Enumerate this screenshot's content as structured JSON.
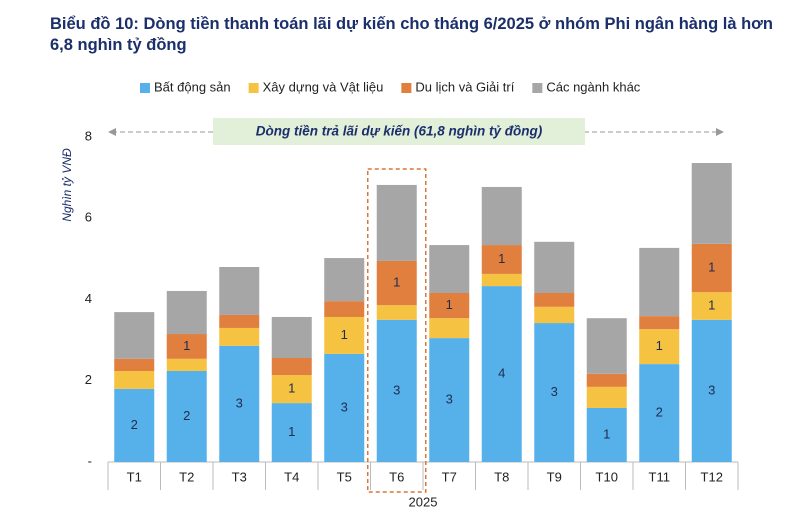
{
  "chart_data": {
    "type": "stacked_bar",
    "title": "Biểu đồ 10: Dòng tiền thanh toán lãi dự kiến cho tháng 6/2025 ở nhóm Phi ngân hàng là hơn 6,8 nghìn tỷ đồng",
    "annotation": "Dòng tiền trả lãi dự kiến (61,8 nghìn tỷ đồng)",
    "y_label": "Nghìn tỷ VNĐ",
    "x_label": "2025",
    "categories": [
      "T1",
      "T2",
      "T3",
      "T4",
      "T5",
      "T6",
      "T7",
      "T8",
      "T9",
      "T10",
      "T11",
      "T12"
    ],
    "highlight": "T6",
    "ylim": [
      0,
      8
    ],
    "yticks": [
      {
        "value": 0,
        "label": "-"
      },
      2,
      4,
      6,
      8
    ],
    "legend": "top",
    "series": [
      {
        "name": "Bất động sản",
        "color": "#56b0ea",
        "values": [
          1.8,
          2.24,
          2.86,
          1.45,
          2.66,
          3.5,
          3.05,
          4.33,
          3.42,
          1.33,
          2.41,
          3.5
        ],
        "value_labels": [
          "2",
          "2",
          "3",
          "1",
          "3",
          "3",
          "3",
          "4",
          "3",
          "1",
          "2",
          "3"
        ]
      },
      {
        "name": "Xây dựng và Vật liệu",
        "color": "#f5c242",
        "values": [
          0.44,
          0.3,
          0.44,
          0.69,
          0.91,
          0.36,
          0.49,
          0.3,
          0.4,
          0.52,
          0.86,
          0.68
        ],
        "value_labels": [
          null,
          null,
          null,
          "1",
          "1",
          null,
          null,
          null,
          null,
          null,
          "1",
          "1"
        ]
      },
      {
        "name": "Du lịch và Giải trí",
        "color": "#e07f3e",
        "values": [
          0.3,
          0.61,
          0.32,
          0.42,
          0.39,
          1.09,
          0.62,
          0.71,
          0.34,
          0.32,
          0.32,
          1.19
        ],
        "value_labels": [
          null,
          "1",
          null,
          null,
          null,
          "1",
          "1",
          "1",
          null,
          null,
          null,
          "1"
        ]
      },
      {
        "name": "Các ngành khác",
        "color": "#a6a6a6",
        "values": [
          1.15,
          1.06,
          1.18,
          1.01,
          1.06,
          1.87,
          1.18,
          1.43,
          1.26,
          1.37,
          1.68,
          1.99
        ]
      }
    ]
  }
}
